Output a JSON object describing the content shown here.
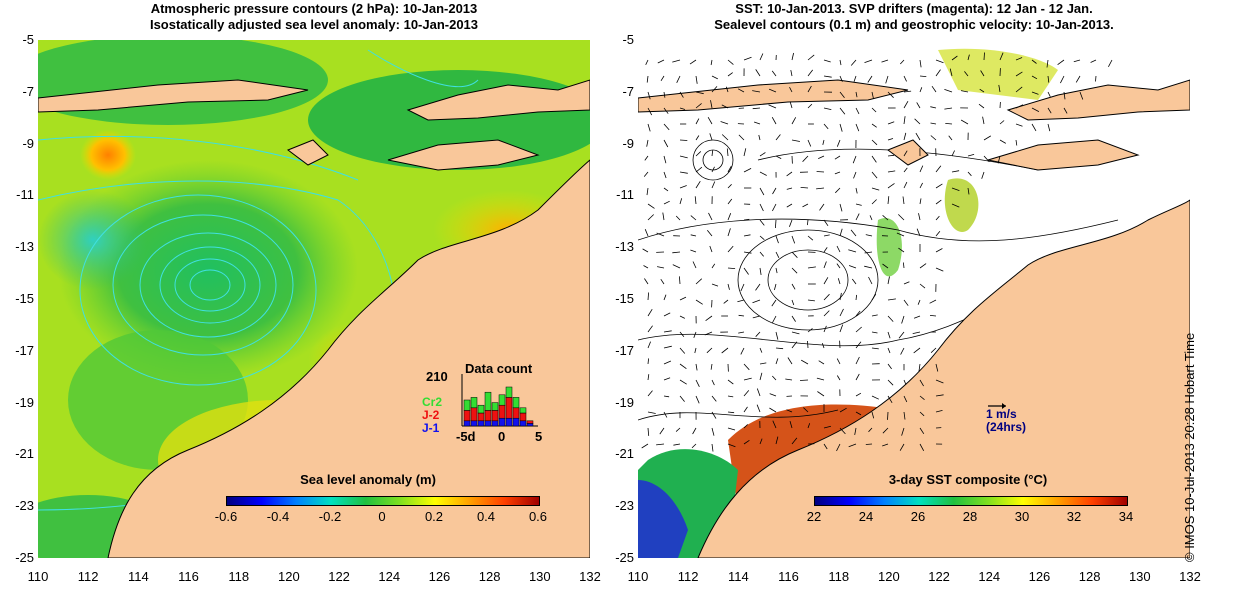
{
  "left_map": {
    "title_line1": "Atmospheric pressure contours (2 hPa): 10-Jan-2013",
    "title_line2": "Isostatically adjusted sea level anomaly: 10-Jan-2013",
    "colorbar_title": "Sea level anomaly (m)",
    "colorbar_ticks": [
      "-0.6",
      "-0.4",
      "-0.2",
      "0",
      "0.2",
      "0.4",
      "0.6"
    ],
    "data_count": {
      "title": "Data count",
      "max_label": "210",
      "legend": [
        {
          "label": "Cr2",
          "color": "#33dd33"
        },
        {
          "label": "J-2",
          "color": "#ee1111"
        },
        {
          "label": "J-1",
          "color": "#1111ee"
        }
      ],
      "x_labels": [
        "-5d",
        "0",
        "5"
      ],
      "bars": [
        {
          "j1": 0.1,
          "j2": 0.2,
          "cr2": 0.2
        },
        {
          "j1": 0.1,
          "j2": 0.25,
          "cr2": 0.2
        },
        {
          "j1": 0.1,
          "j2": 0.15,
          "cr2": 0.15
        },
        {
          "j1": 0.1,
          "j2": 0.2,
          "cr2": 0.35
        },
        {
          "j1": 0.1,
          "j2": 0.2,
          "cr2": 0.15
        },
        {
          "j1": 0.15,
          "j2": 0.25,
          "cr2": 0.2
        },
        {
          "j1": 0.15,
          "j2": 0.4,
          "cr2": 0.2
        },
        {
          "j1": 0.15,
          "j2": 0.2,
          "cr2": 0.2
        },
        {
          "j1": 0.1,
          "j2": 0.15,
          "cr2": 0.1
        },
        {
          "j1": 0.05,
          "j2": 0.05,
          "cr2": 0.0
        }
      ]
    }
  },
  "right_map": {
    "title_line1": "SST: 10-Jan-2013. SVP drifters (magenta): 12 Jan - 12 Jan.",
    "title_line2": "Sealevel contours (0.1 m) and geostrophic velocity: 10-Jan-2013.",
    "colorbar_title": "3-day SST composite (°C)",
    "colorbar_ticks": [
      "22",
      "24",
      "26",
      "28",
      "30",
      "32",
      "34"
    ],
    "scale_line1": "1 m/s",
    "scale_line2": "(24hrs)"
  },
  "axes": {
    "y_ticks": [
      "-5",
      "-7",
      "-9",
      "-11",
      "-13",
      "-15",
      "-17",
      "-19",
      "-21",
      "-23",
      "-25"
    ],
    "x_ticks": [
      "110",
      "112",
      "114",
      "116",
      "118",
      "120",
      "122",
      "124",
      "126",
      "128",
      "130",
      "132"
    ],
    "lon_range": [
      110,
      132
    ],
    "lat_range": [
      -25,
      -5
    ]
  },
  "credit": "© IMOS 10-Jul-2013 20:28 Hobart Time",
  "colors": {
    "land": "#f9c79a",
    "ocean_white": "#ffffff",
    "sla_cmap": [
      "#000080",
      "#0000ff",
      "#0080ff",
      "#00e0c0",
      "#20c040",
      "#80e020",
      "#ffff00",
      "#ffa000",
      "#ff4000",
      "#a00000"
    ],
    "contour": "#40e0e0"
  }
}
